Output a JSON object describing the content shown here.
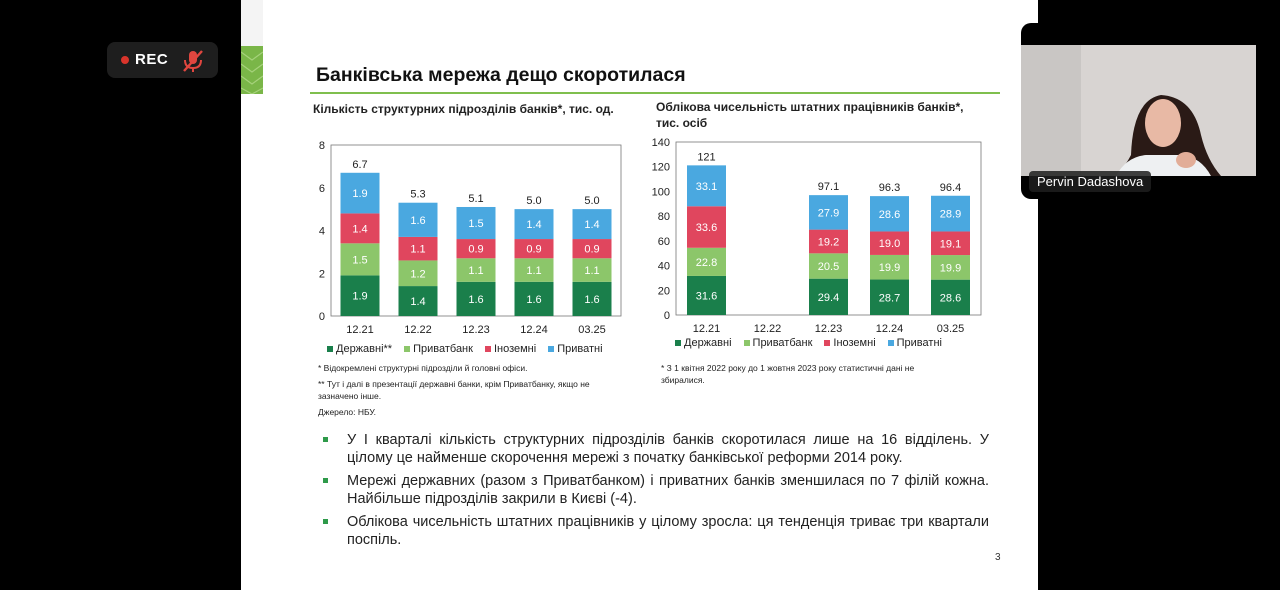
{
  "recording": {
    "label": "REC"
  },
  "slide": {
    "title": "Банківська мережа дещо скоротилася",
    "page_number": "3",
    "footnotes_left": [
      "* Відокремлені структурні підрозділи й головні офіси.",
      "** Тут і далі в презентації державні банки, крім Приватбанку, якщо не",
      "зазначено інше.",
      "Джерело: НБУ."
    ],
    "footnotes_right": [
      "*  З  1  квітня  2022  року  до  1  жовтня  2023  року  статистичні  дані  не",
      "збиралися."
    ],
    "bullets": [
      "У І кварталі кількість структурних підрозділів банків скоротилася лише на 16 відділень. У цілому це найменше скорочення мережі з початку банківської реформи 2014 року.",
      "Мережі державних (разом з Приватбанком) і приватних банків зменшилася по 7 філій кожна. Найбільше підрозділів закрили в Києві (-4).",
      "Облікова чисельність штатних працівників у цілому зросла: ця тенденція триває три квартали поспіль."
    ]
  },
  "participant": {
    "name": "Pervin Dadashova"
  },
  "colors": {
    "state": "#1a7f4b",
    "privatbank": "#8cc66a",
    "foreign": "#e0465e",
    "private": "#4aa8e0"
  },
  "chart_data": [
    {
      "type": "bar",
      "title": "Кількість структурних підрозділів банків*, тис. од.",
      "categories": [
        "12.21",
        "12.22",
        "12.23",
        "12.24",
        "03.25"
      ],
      "series": [
        {
          "name": "Державні**",
          "values": [
            1.9,
            1.4,
            1.6,
            1.6,
            1.6
          ],
          "labels": [
            "1.9",
            "1.4",
            "1.6",
            "1.6",
            "1.6"
          ]
        },
        {
          "name": "Приватбанк",
          "values": [
            1.5,
            1.2,
            1.1,
            1.1,
            1.1
          ],
          "labels": [
            "1.5",
            "1.2",
            "1.1",
            "1.1",
            "1.1"
          ]
        },
        {
          "name": "Іноземні",
          "values": [
            1.4,
            1.1,
            0.9,
            0.9,
            0.9
          ],
          "labels": [
            "1.4",
            "1.1",
            "0.9",
            "0.9",
            "0.9"
          ]
        },
        {
          "name": "Приватні",
          "values": [
            1.9,
            1.6,
            1.5,
            1.4,
            1.4
          ],
          "labels": [
            "1.9",
            "1.6",
            "1.5",
            "1.4",
            "1.4"
          ]
        }
      ],
      "totals": [
        "6.7",
        "5.3",
        "5.1",
        "5.0",
        "5.0"
      ],
      "ylim": [
        0,
        8
      ],
      "yticks": [
        0,
        2,
        4,
        6,
        8
      ],
      "legend": "bottom",
      "grid": false
    },
    {
      "type": "bar",
      "title": "Облікова чисельність штатних працівників банків*, тис. осіб",
      "categories": [
        "12.21",
        "12.22",
        "12.23",
        "12.24",
        "03.25"
      ],
      "series": [
        {
          "name": "Державні",
          "values": [
            31.6,
            null,
            29.4,
            28.7,
            28.6
          ],
          "labels": [
            "31.6",
            "",
            "29.4",
            "28.7",
            "28.6"
          ]
        },
        {
          "name": "Приватбанк",
          "values": [
            22.8,
            null,
            20.5,
            19.9,
            19.9
          ],
          "labels": [
            "22.8",
            "",
            "20.5",
            "19.9",
            "19.9"
          ]
        },
        {
          "name": "Іноземні",
          "values": [
            33.6,
            null,
            19.2,
            19.0,
            19.1
          ],
          "labels": [
            "33.6",
            "",
            "19.2",
            "19.0",
            "19.1"
          ]
        },
        {
          "name": "Приватні",
          "values": [
            33.1,
            null,
            27.9,
            28.6,
            28.9
          ],
          "labels": [
            "33.1",
            "",
            "27.9",
            "28.6",
            "28.9"
          ]
        }
      ],
      "totals": [
        "121",
        "",
        "97.1",
        "96.3",
        "96.4"
      ],
      "ylim": [
        0,
        140
      ],
      "yticks": [
        0,
        20,
        40,
        60,
        80,
        100,
        120,
        140
      ],
      "legend": "bottom",
      "grid": false
    }
  ]
}
